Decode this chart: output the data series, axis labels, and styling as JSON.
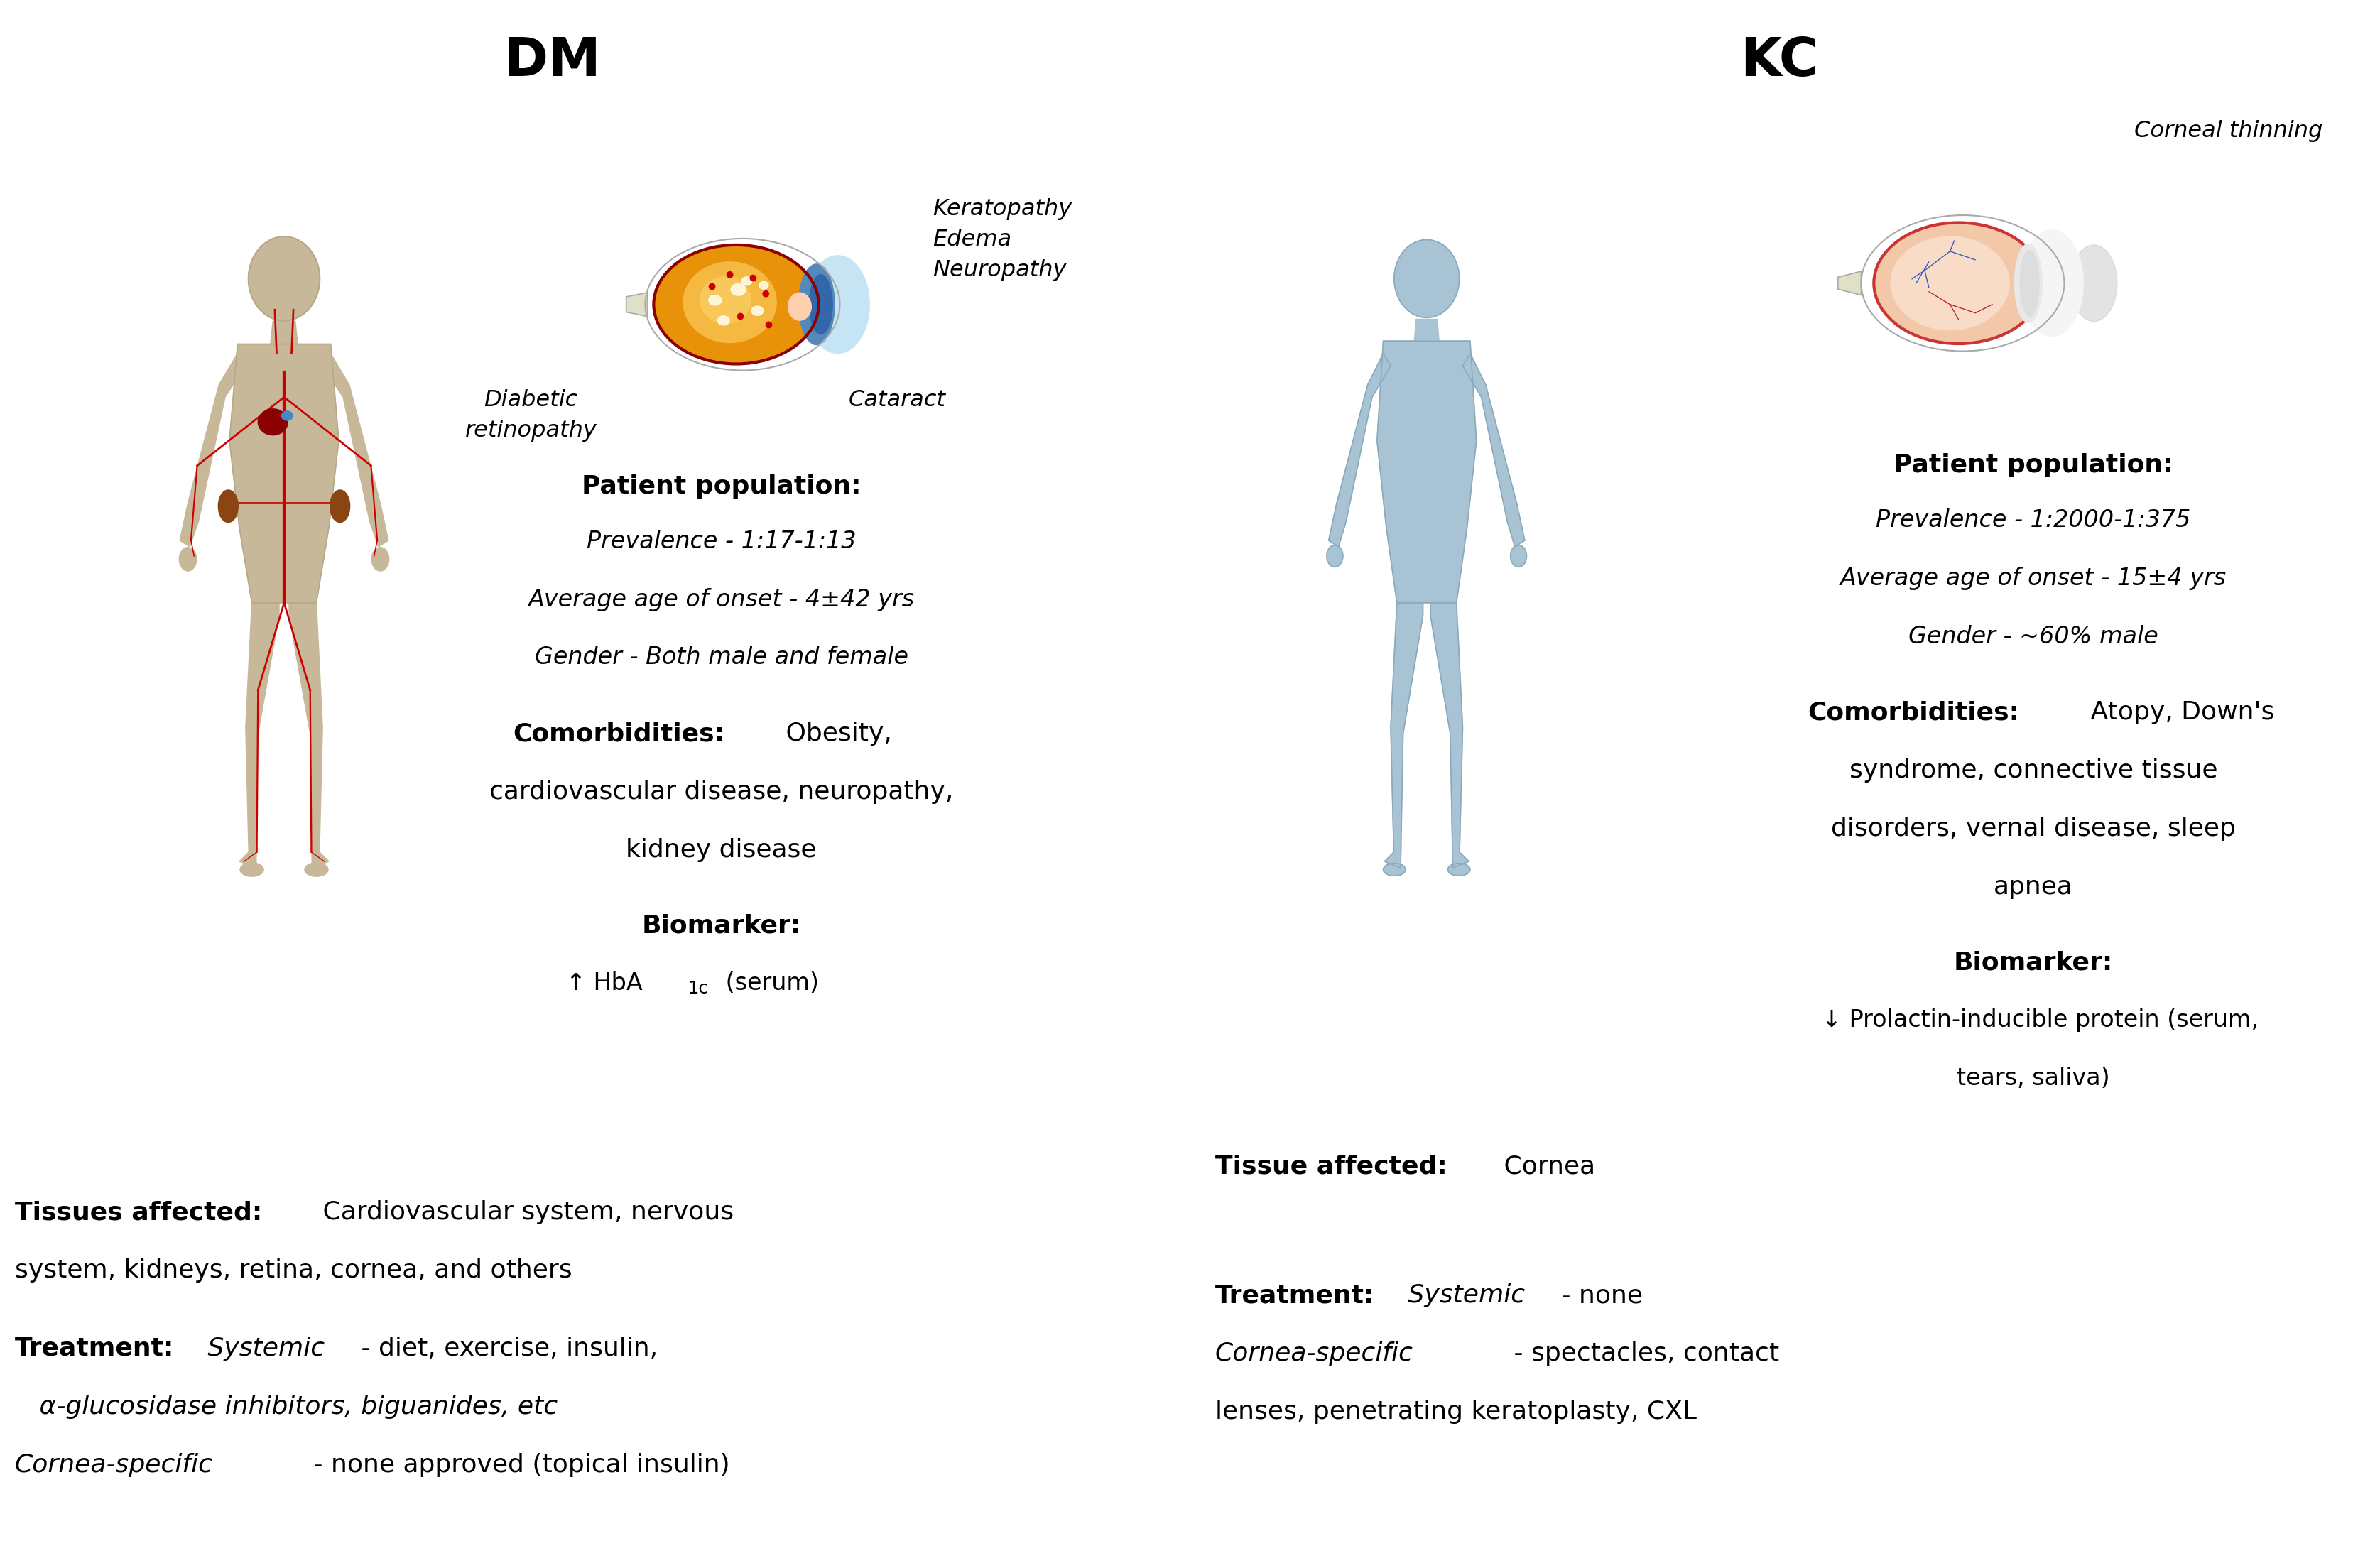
{
  "bg_color": "#ffffff",
  "title_dm": "DM",
  "title_kc": "KC",
  "dm_patient_population_header": "Patient population:",
  "dm_prevalence": "Prevalence - 1:17-1:13",
  "dm_age": "Average age of onset - 4±42 yrs",
  "dm_gender": "Gender - Both male and female",
  "dm_comorbidities_header": "Comorbidities:",
  "dm_comorbidities_line1": "Obesity,",
  "dm_comorbidities_line2": "cardiovascular disease, neuropathy,",
  "dm_comorbidities_line3": "kidney disease",
  "dm_biomarker_header": "Biomarker:",
  "dm_biomarker_arrow": "↑ HbA",
  "dm_biomarker_sub": "1c",
  "dm_biomarker_rest": " (serum)",
  "dm_tissues_header": "Tissues affected:",
  "dm_tissues_line1": " Cardiovascular system, nervous",
  "dm_tissues_line2": "system, kidneys, retina, cornea, and others",
  "dm_treatment_header": "Treatment:",
  "dm_treatment_systemic_label": "Systemic",
  "dm_treatment_systemic_rest": " - diet, exercise, insulin,",
  "dm_treatment_line2": "α-glucosidase inhibitors, biguanides, etc",
  "dm_treatment_cornea_label": "Cornea-specific",
  "dm_treatment_cornea_rest": " - none approved (topical insulin)",
  "dm_eye_label1": "Keratopathy\nEdema\nNeuropathy",
  "dm_eye_label2": "Diabetic\nretinopathy",
  "dm_eye_label3": "Cataract",
  "kc_patient_population_header": "Patient population:",
  "kc_prevalence": "Prevalence - 1:2000-1:375",
  "kc_age": "Average age of onset - 15±4 yrs",
  "kc_gender": "Gender - ~60% male",
  "kc_comorbidities_header": "Comorbidities:",
  "kc_comorbidities_line1": " Atopy, Down's",
  "kc_comorbidities_line2": "syndrome, connective tissue",
  "kc_comorbidities_line3": "disorders, vernal disease, sleep",
  "kc_comorbidities_line4": "apnea",
  "kc_biomarker_header": "Biomarker:",
  "kc_biomarker_line1": "↓ Prolactin-inducible protein (serum,",
  "kc_biomarker_line2": "tears, saliva)",
  "kc_tissues_header": "Tissue affected:",
  "kc_tissues_text": " Cornea",
  "kc_treatment_header": "Treatment:",
  "kc_treatment_systemic_label": "Systemic",
  "kc_treatment_systemic_rest": " - none",
  "kc_treatment_cornea_label": "Cornea-specific",
  "kc_treatment_cornea_rest": " - spectacles, contact",
  "kc_treatment_line3": "lenses, penetrating keratoplasty, CXL",
  "kc_eye_label": "Corneal thinning",
  "body_color_dm": "#C8B89A",
  "vascular_color": "#CC0000",
  "body_color_kc": "#A8C4D4",
  "body_outline_kc": "#8AAABB"
}
